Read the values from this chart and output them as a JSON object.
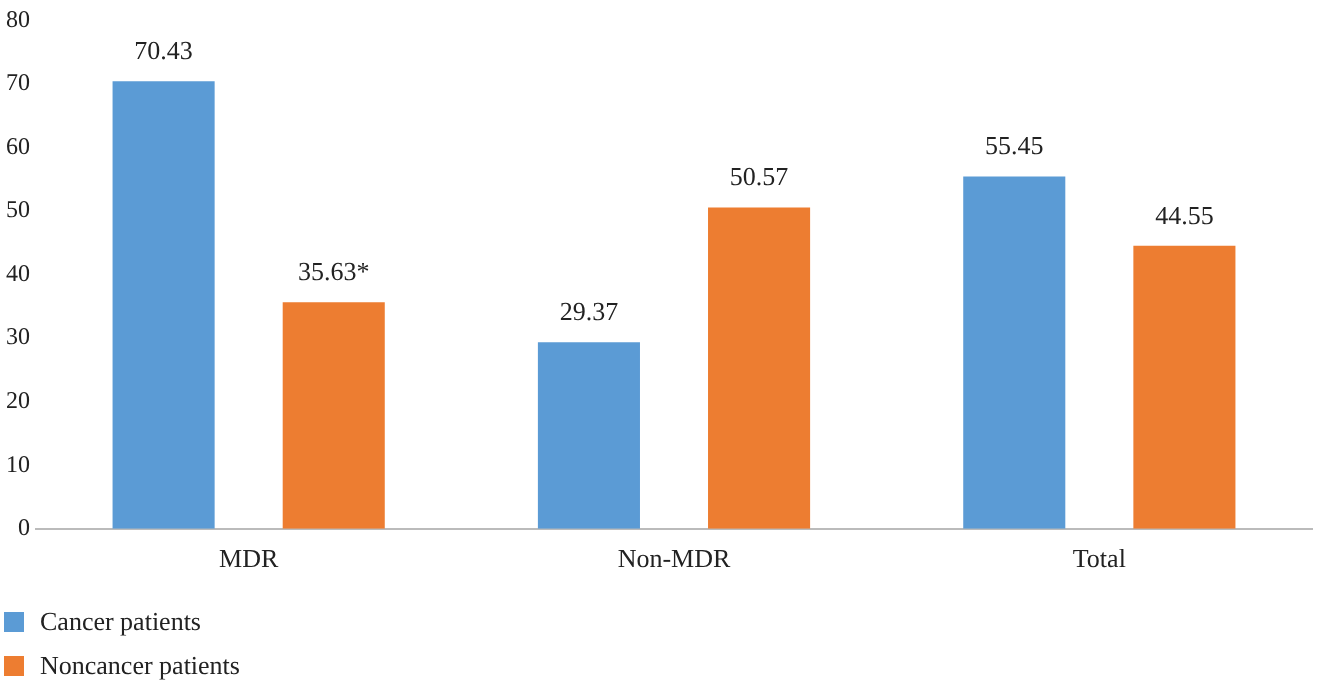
{
  "chart_data": {
    "type": "bar",
    "categories": [
      "MDR",
      "Non-MDR",
      "Total"
    ],
    "series": [
      {
        "name": "Cancer patients",
        "color": "#5b9bd5",
        "values": [
          70.43,
          29.37,
          55.45
        ],
        "value_labels": [
          "70.43",
          "29.37",
          "55.45"
        ]
      },
      {
        "name": "Noncancer patients",
        "color": "#ed7d31",
        "values": [
          35.63,
          50.57,
          44.55
        ],
        "value_labels": [
          "35.63*",
          "50.57",
          "44.55"
        ]
      }
    ],
    "ylim": [
      0,
      80
    ],
    "yticks": [
      0,
      10,
      20,
      30,
      40,
      50,
      60,
      70,
      80
    ],
    "grid": false,
    "legend": "bottom left"
  }
}
